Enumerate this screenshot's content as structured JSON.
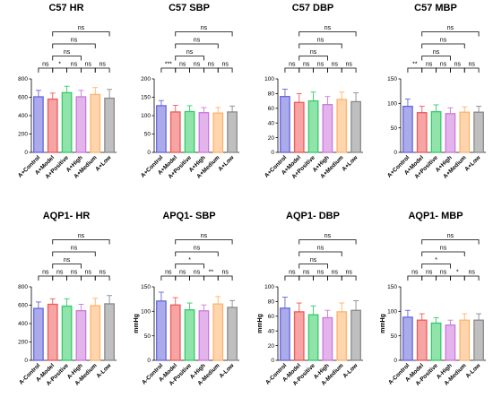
{
  "figure": {
    "background": "#ffffff"
  },
  "palette": [
    "#6666dd",
    "#ee5a5a",
    "#33cc66",
    "#cc77dd",
    "#ffb36b",
    "#8a8a8a"
  ],
  "chart_data": [
    {
      "type": "bar",
      "title": "C57 HR",
      "categories": [
        "A+Control",
        "A+Model",
        "A+Positive",
        "A+High",
        "A+Medium",
        "A+Low"
      ],
      "values": [
        605,
        580,
        650,
        605,
        630,
        590
      ],
      "errors": [
        70,
        65,
        70,
        70,
        75,
        95
      ],
      "ylim": [
        0,
        800
      ],
      "yticks": [
        0,
        200,
        400,
        600,
        800
      ],
      "ylabel": "",
      "brackets": [
        {
          "i": 0,
          "j": 1,
          "label": "ns",
          "level": 0
        },
        {
          "i": 1,
          "j": 2,
          "label": "*",
          "level": 0
        },
        {
          "i": 2,
          "j": 3,
          "label": "ns",
          "level": 0
        },
        {
          "i": 3,
          "j": 4,
          "label": "ns",
          "level": 0
        },
        {
          "i": 4,
          "j": 5,
          "label": "ns",
          "level": 0
        },
        {
          "i": 1,
          "j": 3,
          "label": "ns",
          "level": 1
        },
        {
          "i": 1,
          "j": 4,
          "label": "ns",
          "level": 2
        },
        {
          "i": 1,
          "j": 5,
          "label": "ns",
          "level": 3
        }
      ]
    },
    {
      "type": "bar",
      "title": "C57 SBP",
      "categories": [
        "A+Control",
        "A+Model",
        "A+Positive",
        "A+High",
        "A+Medium",
        "A+Low"
      ],
      "values": [
        127,
        110,
        111,
        108,
        107,
        110
      ],
      "errors": [
        14,
        18,
        16,
        14,
        15,
        16
      ],
      "ylim": [
        0,
        200
      ],
      "yticks": [
        0,
        50,
        100,
        150,
        200
      ],
      "ylabel": "",
      "brackets": [
        {
          "i": 0,
          "j": 1,
          "label": "***",
          "level": 0
        },
        {
          "i": 1,
          "j": 2,
          "label": "ns",
          "level": 0
        },
        {
          "i": 2,
          "j": 3,
          "label": "ns",
          "level": 0
        },
        {
          "i": 3,
          "j": 4,
          "label": "ns",
          "level": 0
        },
        {
          "i": 4,
          "j": 5,
          "label": "ns",
          "level": 0
        },
        {
          "i": 1,
          "j": 3,
          "label": "ns",
          "level": 1
        },
        {
          "i": 1,
          "j": 4,
          "label": "ns",
          "level": 2
        },
        {
          "i": 1,
          "j": 5,
          "label": "ns",
          "level": 3
        }
      ]
    },
    {
      "type": "bar",
      "title": "C57 DBP",
      "categories": [
        "A+Control",
        "A+Model",
        "A+Positive",
        "A+High",
        "A+Medium",
        "A+Low"
      ],
      "values": [
        76,
        68,
        70,
        65,
        72,
        69
      ],
      "errors": [
        10,
        12,
        12,
        11,
        10,
        12
      ],
      "ylim": [
        0,
        100
      ],
      "yticks": [
        0,
        20,
        40,
        60,
        80,
        100
      ],
      "ylabel": "",
      "brackets": [
        {
          "i": 0,
          "j": 1,
          "label": "ns",
          "level": 0
        },
        {
          "i": 1,
          "j": 2,
          "label": "ns",
          "level": 0
        },
        {
          "i": 2,
          "j": 3,
          "label": "ns",
          "level": 0
        },
        {
          "i": 3,
          "j": 4,
          "label": "ns",
          "level": 0
        },
        {
          "i": 4,
          "j": 5,
          "label": "ns",
          "level": 0
        },
        {
          "i": 1,
          "j": 3,
          "label": "ns",
          "level": 1
        },
        {
          "i": 1,
          "j": 4,
          "label": "ns",
          "level": 2
        },
        {
          "i": 1,
          "j": 5,
          "label": "ns",
          "level": 3
        }
      ]
    },
    {
      "type": "bar",
      "title": "C57 MBP",
      "categories": [
        "A+Control",
        "A+Model",
        "A+Positive",
        "A+High",
        "A+Medium",
        "A+Low"
      ],
      "values": [
        94,
        81,
        83,
        79,
        82,
        82
      ],
      "errors": [
        15,
        13,
        14,
        12,
        11,
        12
      ],
      "ylim": [
        0,
        150
      ],
      "yticks": [
        0,
        50,
        100,
        150
      ],
      "ylabel": "",
      "brackets": [
        {
          "i": 0,
          "j": 1,
          "label": "**",
          "level": 0
        },
        {
          "i": 1,
          "j": 2,
          "label": "ns",
          "level": 0
        },
        {
          "i": 2,
          "j": 3,
          "label": "ns",
          "level": 0
        },
        {
          "i": 3,
          "j": 4,
          "label": "ns",
          "level": 0
        },
        {
          "i": 4,
          "j": 5,
          "label": "ns",
          "level": 0
        },
        {
          "i": 1,
          "j": 3,
          "label": "ns",
          "level": 1
        },
        {
          "i": 1,
          "j": 4,
          "label": "ns",
          "level": 2
        },
        {
          "i": 1,
          "j": 5,
          "label": "ns",
          "level": 3
        }
      ]
    },
    {
      "type": "bar",
      "title": "AQP1- HR",
      "categories": [
        "A-Control",
        "A-Model",
        "A-Positive",
        "A-High",
        "A-Medium",
        "A-Low"
      ],
      "values": [
        565,
        610,
        590,
        540,
        595,
        615
      ],
      "errors": [
        70,
        60,
        80,
        70,
        80,
        90
      ],
      "ylim": [
        0,
        800
      ],
      "yticks": [
        0,
        200,
        400,
        600,
        800
      ],
      "ylabel": "",
      "brackets": [
        {
          "i": 0,
          "j": 1,
          "label": "ns",
          "level": 0
        },
        {
          "i": 1,
          "j": 2,
          "label": "ns",
          "level": 0
        },
        {
          "i": 2,
          "j": 3,
          "label": "ns",
          "level": 0
        },
        {
          "i": 3,
          "j": 4,
          "label": "ns",
          "level": 0
        },
        {
          "i": 4,
          "j": 5,
          "label": "ns",
          "level": 0
        },
        {
          "i": 1,
          "j": 3,
          "label": "ns",
          "level": 1
        },
        {
          "i": 1,
          "j": 4,
          "label": "ns",
          "level": 2
        },
        {
          "i": 1,
          "j": 5,
          "label": "ns",
          "level": 3
        }
      ]
    },
    {
      "type": "bar",
      "title": "APQ1- SBP",
      "categories": [
        "A-Control",
        "A-Model",
        "A-Positive",
        "A-High",
        "A-Medium",
        "A-Low"
      ],
      "values": [
        121,
        113,
        103,
        101,
        115,
        108
      ],
      "errors": [
        18,
        15,
        14,
        12,
        15,
        14
      ],
      "ylim": [
        0,
        150
      ],
      "yticks": [
        0,
        50,
        100,
        150
      ],
      "ylabel": "mmHg",
      "brackets": [
        {
          "i": 0,
          "j": 1,
          "label": "ns",
          "level": 0
        },
        {
          "i": 1,
          "j": 2,
          "label": "ns",
          "level": 0
        },
        {
          "i": 2,
          "j": 3,
          "label": "ns",
          "level": 0
        },
        {
          "i": 3,
          "j": 4,
          "label": "**",
          "level": 0
        },
        {
          "i": 4,
          "j": 5,
          "label": "ns",
          "level": 0
        },
        {
          "i": 1,
          "j": 3,
          "label": "*",
          "level": 1
        },
        {
          "i": 1,
          "j": 4,
          "label": "ns",
          "level": 2
        },
        {
          "i": 1,
          "j": 5,
          "label": "ns",
          "level": 3
        }
      ]
    },
    {
      "type": "bar",
      "title": "AQP1- DBP",
      "categories": [
        "A-Control",
        "A-Model",
        "A-Positive",
        "A-High",
        "A-Medium",
        "A-Low"
      ],
      "values": [
        71,
        66,
        62,
        58,
        66,
        68
      ],
      "errors": [
        15,
        12,
        12,
        10,
        12,
        13
      ],
      "ylim": [
        0,
        100
      ],
      "yticks": [
        0,
        20,
        40,
        60,
        80,
        100
      ],
      "ylabel": "mmHg",
      "brackets": [
        {
          "i": 0,
          "j": 1,
          "label": "ns",
          "level": 0
        },
        {
          "i": 1,
          "j": 2,
          "label": "ns",
          "level": 0
        },
        {
          "i": 2,
          "j": 3,
          "label": "ns",
          "level": 0
        },
        {
          "i": 3,
          "j": 4,
          "label": "ns",
          "level": 0
        },
        {
          "i": 4,
          "j": 5,
          "label": "ns",
          "level": 0
        },
        {
          "i": 1,
          "j": 3,
          "label": "ns",
          "level": 1
        },
        {
          "i": 1,
          "j": 4,
          "label": "ns",
          "level": 2
        },
        {
          "i": 1,
          "j": 5,
          "label": "ns",
          "level": 3
        }
      ]
    },
    {
      "type": "bar",
      "title": "AQP1- MBP",
      "categories": [
        "A-Control",
        "A-Model",
        "A-Positive",
        "A-High",
        "A-Medium",
        "A-Low"
      ],
      "values": [
        88,
        82,
        76,
        72,
        82,
        82
      ],
      "errors": [
        14,
        13,
        11,
        10,
        13,
        13
      ],
      "ylim": [
        0,
        150
      ],
      "yticks": [
        0,
        50,
        100,
        150
      ],
      "ylabel": "mmHg",
      "brackets": [
        {
          "i": 0,
          "j": 1,
          "label": "ns",
          "level": 0
        },
        {
          "i": 1,
          "j": 2,
          "label": "ns",
          "level": 0
        },
        {
          "i": 2,
          "j": 3,
          "label": "ns",
          "level": 0
        },
        {
          "i": 3,
          "j": 4,
          "label": "*",
          "level": 0
        },
        {
          "i": 4,
          "j": 5,
          "label": "ns",
          "level": 0
        },
        {
          "i": 1,
          "j": 3,
          "label": "*",
          "level": 1
        },
        {
          "i": 1,
          "j": 4,
          "label": "ns",
          "level": 2
        },
        {
          "i": 1,
          "j": 5,
          "label": "ns",
          "level": 3
        }
      ]
    }
  ]
}
